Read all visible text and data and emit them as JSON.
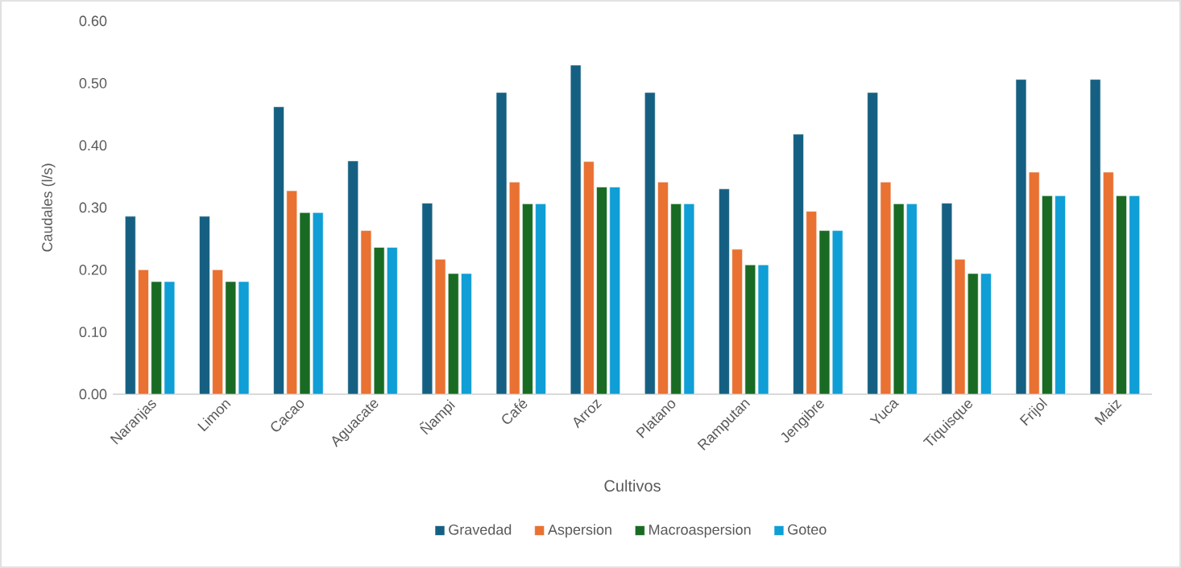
{
  "chart_data": {
    "type": "bar",
    "xlabel": "Cultivos",
    "ylabel": "Caudales (l/s)",
    "categories": [
      "Naranjas",
      "Limon",
      "Cacao",
      "Aguacate",
      "Ñampi",
      "Café",
      "Arroz",
      "Platano",
      "Ramputan",
      "Jengibre",
      "Yuca",
      "Tiquisque",
      "Frijol",
      "Maiz"
    ],
    "series": [
      {
        "name": "Gravedad",
        "color": "#156082",
        "values": [
          0.286,
          0.286,
          0.462,
          0.375,
          0.307,
          0.485,
          0.529,
          0.485,
          0.33,
          0.418,
          0.485,
          0.307,
          0.506,
          0.506
        ]
      },
      {
        "name": "Aspersion",
        "color": "#e97132",
        "values": [
          0.2,
          0.2,
          0.327,
          0.263,
          0.217,
          0.341,
          0.374,
          0.341,
          0.233,
          0.294,
          0.341,
          0.217,
          0.357,
          0.357
        ]
      },
      {
        "name": "Macroaspersion",
        "color": "#196b24",
        "values": [
          0.181,
          0.181,
          0.292,
          0.236,
          0.194,
          0.306,
          0.333,
          0.306,
          0.208,
          0.263,
          0.306,
          0.194,
          0.319,
          0.319
        ]
      },
      {
        "name": "Goteo",
        "color": "#0f9ed5",
        "values": [
          0.181,
          0.181,
          0.292,
          0.236,
          0.194,
          0.306,
          0.333,
          0.306,
          0.208,
          0.263,
          0.306,
          0.194,
          0.319,
          0.319
        ]
      }
    ],
    "ylim": [
      0,
      0.6
    ],
    "yticks": [
      {
        "value": 0,
        "label": "0.00"
      },
      {
        "value": 0.1,
        "label": "0.10"
      },
      {
        "value": 0.2,
        "label": "0.20"
      },
      {
        "value": 0.3,
        "label": "0.30"
      },
      {
        "value": 0.4,
        "label": "0.40"
      },
      {
        "value": 0.5,
        "label": "0.50"
      },
      {
        "value": 0.6,
        "label": "0.60"
      }
    ],
    "legend": "bottom"
  }
}
